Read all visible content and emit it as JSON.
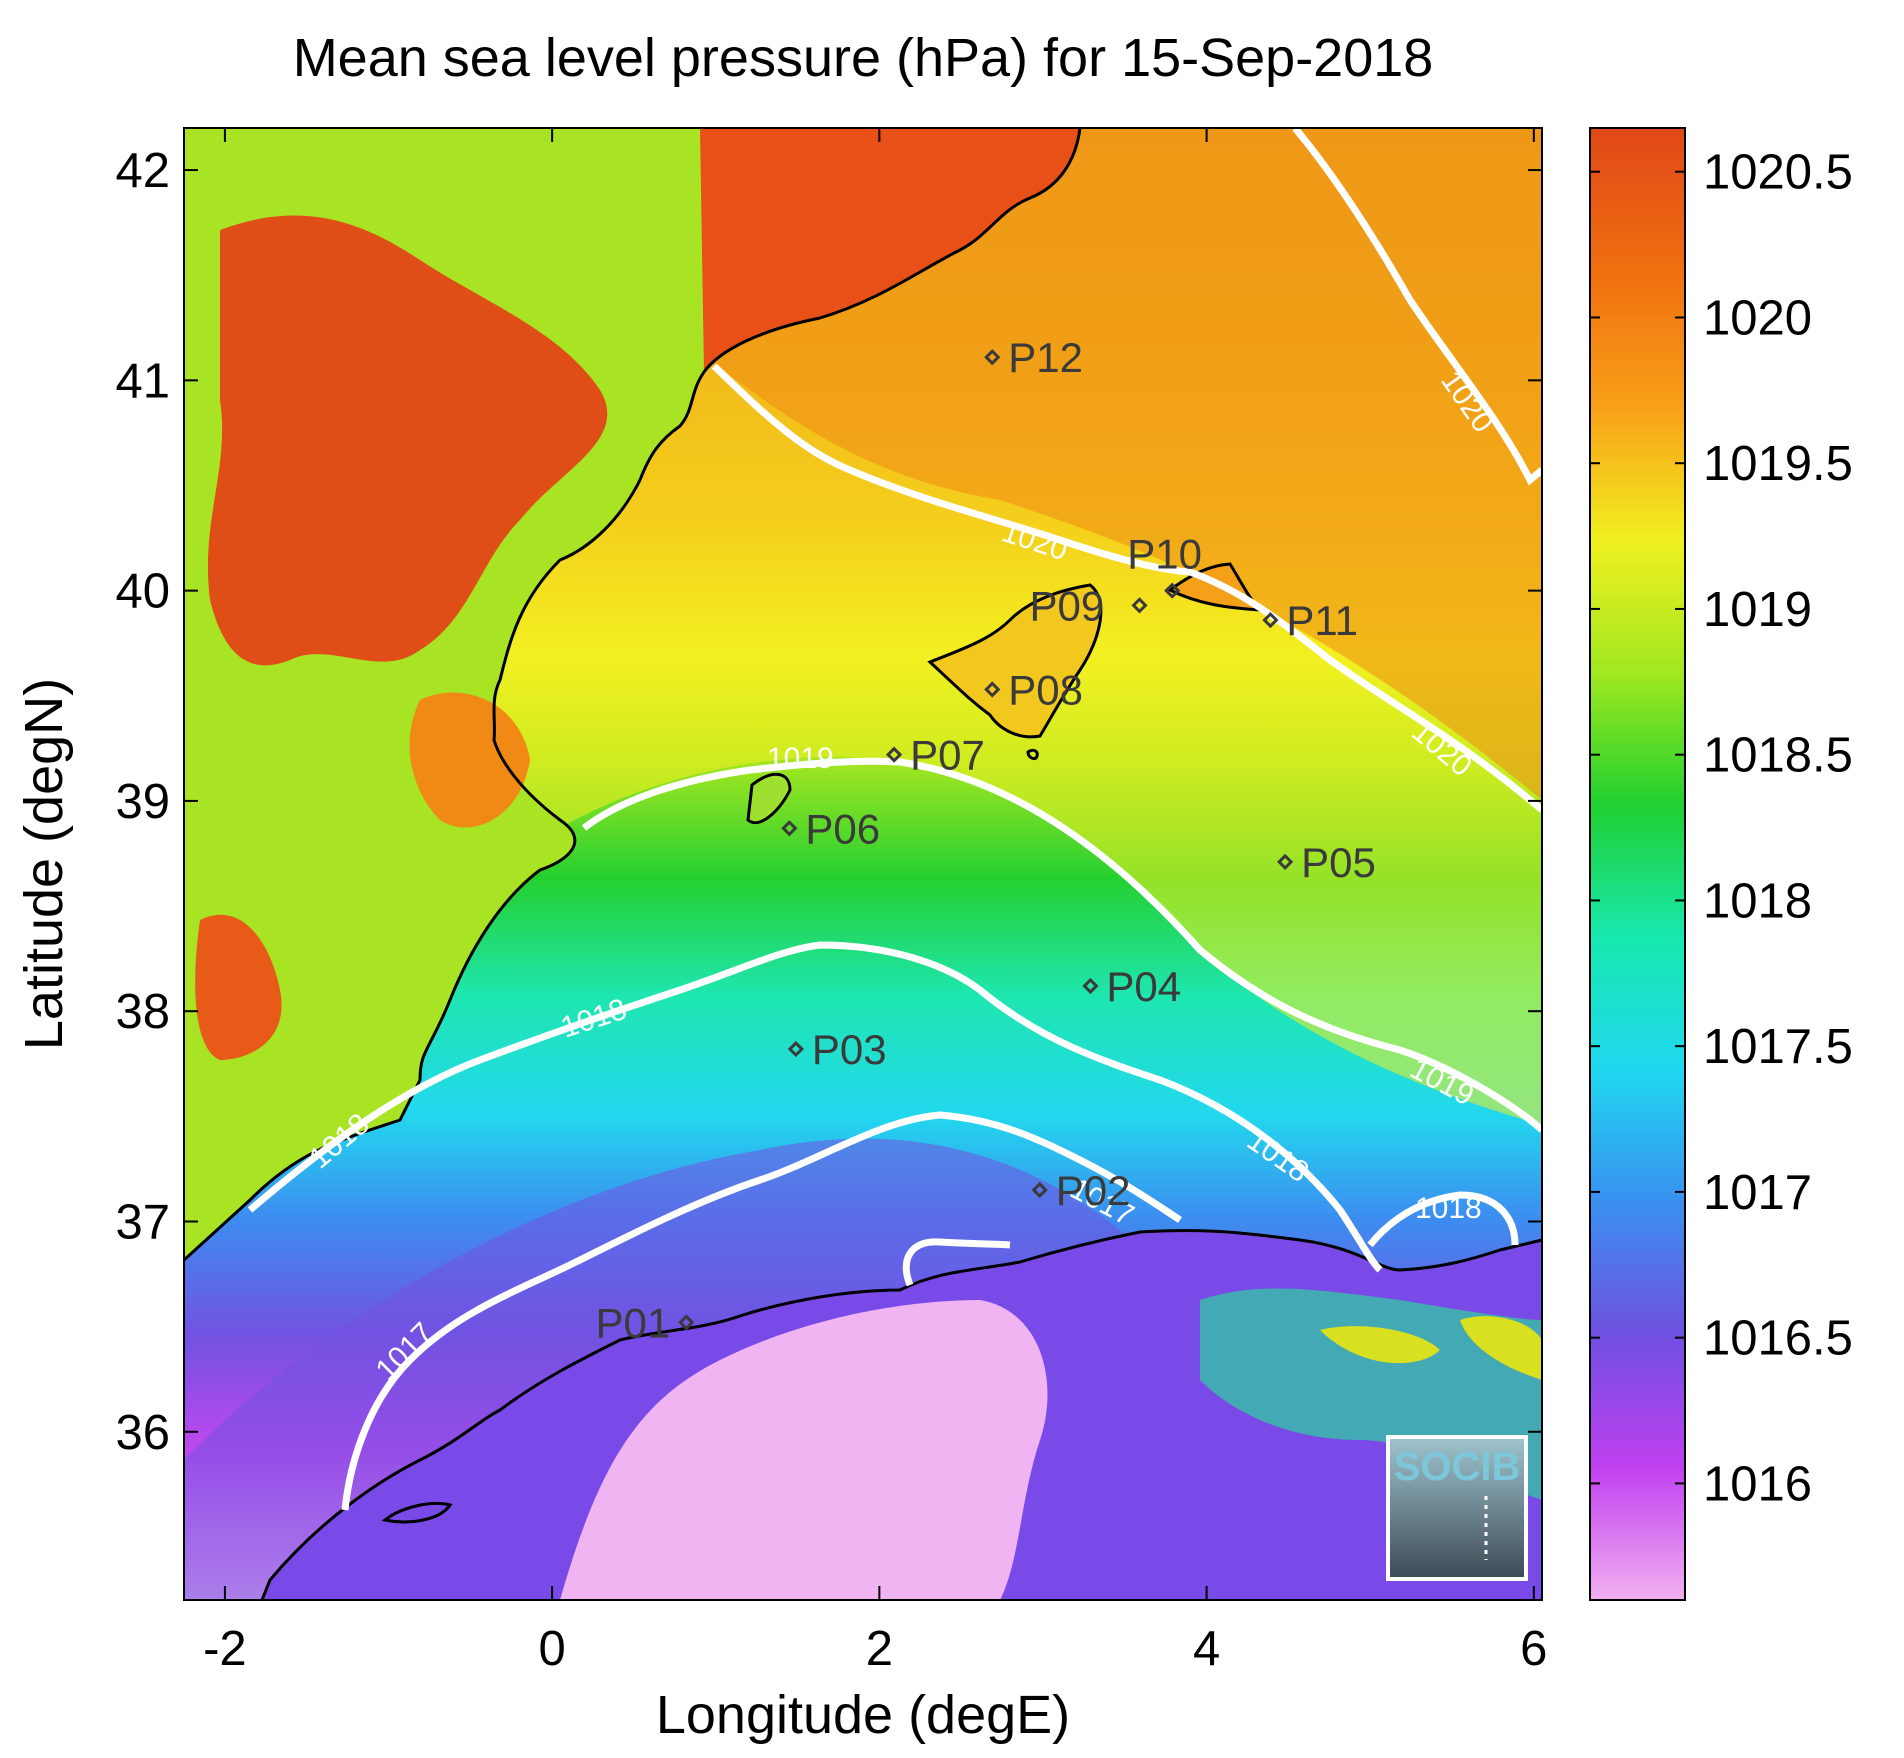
{
  "title": "Mean sea level pressure (hPa) for 15-Sep-2018",
  "axes": {
    "xlabel": "Longitude (degE)",
    "ylabel": "Latitude (degN)",
    "xticks": [
      "-2",
      "0",
      "2",
      "4",
      "6"
    ],
    "yticks": [
      "36",
      "37",
      "38",
      "39",
      "40",
      "41",
      "42"
    ],
    "xlim": [
      -2.25,
      6.05
    ],
    "ylim": [
      35.2,
      42.2
    ]
  },
  "colorbar": {
    "ticks": [
      "1016",
      "1016.5",
      "1017",
      "1017.5",
      "1018",
      "1018.5",
      "1019",
      "1019.5",
      "1020",
      "1020.5"
    ],
    "range": [
      1015.6,
      1020.65
    ],
    "colors": [
      "#f2b0f0",
      "#c040f0",
      "#7050e0",
      "#3a90f0",
      "#20d8f0",
      "#18e8b0",
      "#20d030",
      "#a0e820",
      "#f0f020",
      "#f8a018",
      "#f07010",
      "#e04818"
    ]
  },
  "contours": [
    {
      "level": "1020",
      "label": "1020"
    },
    {
      "level": "1019",
      "label": "1019"
    },
    {
      "level": "1018",
      "label": "1018"
    },
    {
      "level": "1017",
      "label": "1017"
    }
  ],
  "stations": [
    {
      "id": "P01",
      "lon": 0.82,
      "lat": 36.52
    },
    {
      "id": "P02",
      "lon": 2.98,
      "lat": 37.15
    },
    {
      "id": "P03",
      "lon": 1.49,
      "lat": 37.82
    },
    {
      "id": "P04",
      "lon": 3.29,
      "lat": 38.12
    },
    {
      "id": "P05",
      "lon": 4.48,
      "lat": 38.71
    },
    {
      "id": "P06",
      "lon": 1.45,
      "lat": 38.87
    },
    {
      "id": "P07",
      "lon": 2.09,
      "lat": 39.22
    },
    {
      "id": "P08",
      "lon": 2.69,
      "lat": 39.53
    },
    {
      "id": "P09",
      "lon": 3.59,
      "lat": 39.93
    },
    {
      "id": "P10",
      "lon": 3.79,
      "lat": 40.0
    },
    {
      "id": "P11",
      "lon": 4.39,
      "lat": 39.86
    },
    {
      "id": "P12",
      "lon": 2.69,
      "lat": 41.11
    }
  ],
  "logo": {
    "text": "SOCIB"
  },
  "chart_data": {
    "type": "heatmap",
    "title": "Mean sea level pressure (hPa) for 15-Sep-2018",
    "xlabel": "Longitude (degE)",
    "ylabel": "Latitude (degN)",
    "xlim": [
      -2.25,
      6.05
    ],
    "ylim": [
      35.2,
      42.2
    ],
    "value_range": [
      1015.6,
      1020.65
    ],
    "contour_levels": [
      1017,
      1018,
      1019,
      1020
    ],
    "grid": false
  }
}
